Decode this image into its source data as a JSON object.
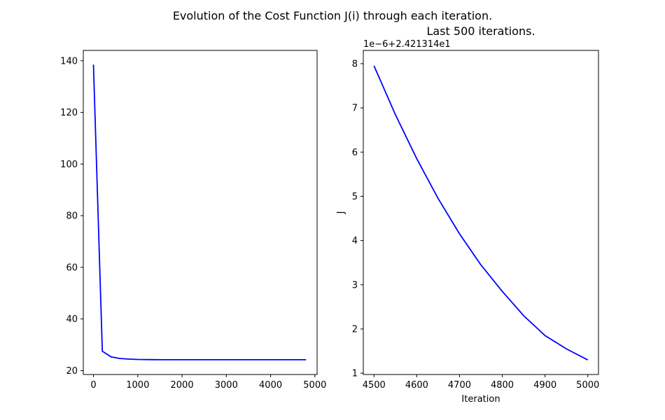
{
  "figure": {
    "suptitle": "Evolution of the Cost Function J(i) through each iteration."
  },
  "chart_data": [
    {
      "type": "line",
      "title": "",
      "xlabel": "",
      "ylabel": "",
      "xlim": [
        -230,
        5050
      ],
      "ylim": [
        18.5,
        144
      ],
      "xticks": [
        0,
        1000,
        2000,
        3000,
        4000,
        5000
      ],
      "xtick_labels": [
        "0",
        "1000",
        "2000",
        "3000",
        "4000",
        "5000"
      ],
      "yticks": [
        20,
        40,
        60,
        80,
        100,
        120,
        140
      ],
      "ytick_labels": [
        "20",
        "40",
        "60",
        "80",
        "100",
        "120",
        "140"
      ],
      "grid": false,
      "series": [
        {
          "color": "#0000ff",
          "x": [
            0,
            200,
            400,
            600,
            800,
            1000,
            1200,
            1400,
            1600,
            2000,
            3000,
            4000,
            4800
          ],
          "y": [
            138.5,
            27.5,
            25.3,
            24.7,
            24.45,
            24.33,
            24.27,
            24.24,
            24.22,
            24.215,
            24.213,
            24.213,
            24.213
          ]
        }
      ]
    },
    {
      "type": "line",
      "title": "Last 500 iterations.",
      "xlabel": "Iteration",
      "ylabel": "J",
      "offset_text": "1e−6+2.421314e1",
      "xlim": [
        4475,
        5025
      ],
      "ylim": [
        0.97,
        8.3
      ],
      "xticks": [
        4500,
        4600,
        4700,
        4800,
        4900,
        5000
      ],
      "xtick_labels": [
        "4500",
        "4600",
        "4700",
        "4800",
        "4900",
        "5000"
      ],
      "yticks": [
        1,
        2,
        3,
        4,
        5,
        6,
        7,
        8
      ],
      "ytick_labels": [
        "1",
        "2",
        "3",
        "4",
        "5",
        "6",
        "7",
        "8"
      ],
      "grid": false,
      "series": [
        {
          "color": "#0000ff",
          "x": [
            4500,
            4550,
            4600,
            4650,
            4700,
            4750,
            4800,
            4850,
            4900,
            4950,
            5000
          ],
          "y": [
            7.95,
            6.85,
            5.85,
            4.95,
            4.15,
            3.45,
            2.85,
            2.3,
            1.85,
            1.55,
            1.3
          ]
        }
      ]
    }
  ]
}
